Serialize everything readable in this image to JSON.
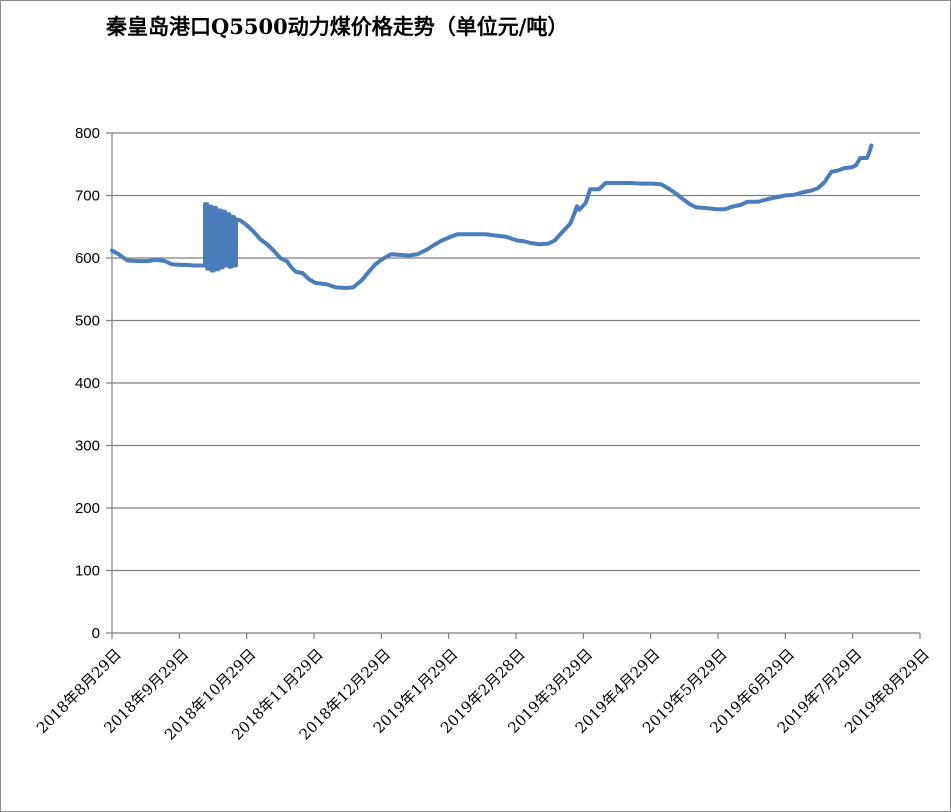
{
  "chart_data": {
    "type": "line",
    "title": "秦皇岛港口Q5500动力煤价格走势（单位元/吨）",
    "xlabel": "",
    "ylabel": "",
    "ylim": [
      0,
      800
    ],
    "yticks": [
      "0",
      "100",
      "200",
      "300",
      "400",
      "500",
      "600",
      "700",
      "800"
    ],
    "xlim": [
      "2018-08-29",
      "2019-08-29"
    ],
    "x_tick_labels": [
      "2018年8月29日",
      "2018年9月29日",
      "2018年10月29日",
      "2018年11月29日",
      "2018年12月29日",
      "2019年1月29日",
      "2019年2月28日",
      "2019年3月29日",
      "2019年4月29日",
      "2019年5月29日",
      "2019年6月29日",
      "2019年7月29日",
      "2019年8月29日"
    ],
    "grid": true,
    "legend": "none",
    "colors": {
      "series": "#4a7ebb",
      "grid": "#808080",
      "axis": "#808080"
    },
    "series": [
      {
        "points": [
          [
            "2018-08-29",
            612
          ],
          [
            "2018-09-01",
            606
          ],
          [
            "2018-09-05",
            596
          ],
          [
            "2018-09-10",
            595
          ],
          [
            "2018-09-14",
            595
          ],
          [
            "2018-09-18",
            597
          ],
          [
            "2018-09-22",
            595
          ],
          [
            "2018-09-25",
            590
          ],
          [
            "2018-09-29",
            589
          ],
          [
            "2018-10-01",
            589
          ],
          [
            "2018-10-05",
            588
          ],
          [
            "2018-10-10",
            588
          ],
          [
            "2018-10-10",
            686
          ],
          [
            "2018-10-11",
            686
          ],
          [
            "2018-10-11",
            583
          ],
          [
            "2018-10-12",
            583
          ],
          [
            "2018-10-12",
            682
          ],
          [
            "2018-10-13",
            682
          ],
          [
            "2018-10-13",
            580
          ],
          [
            "2018-10-14",
            580
          ],
          [
            "2018-10-14",
            680
          ],
          [
            "2018-10-15",
            680
          ],
          [
            "2018-10-15",
            582
          ],
          [
            "2018-10-16",
            582
          ],
          [
            "2018-10-16",
            676
          ],
          [
            "2018-10-17",
            676
          ],
          [
            "2018-10-17",
            585
          ],
          [
            "2018-10-18",
            585
          ],
          [
            "2018-10-18",
            674
          ],
          [
            "2018-10-19",
            674
          ],
          [
            "2018-10-19",
            588
          ],
          [
            "2018-10-20",
            588
          ],
          [
            "2018-10-20",
            670
          ],
          [
            "2018-10-21",
            670
          ],
          [
            "2018-10-21",
            586
          ],
          [
            "2018-10-22",
            586
          ],
          [
            "2018-10-22",
            666
          ],
          [
            "2018-10-23",
            666
          ],
          [
            "2018-10-23",
            588
          ],
          [
            "2018-10-24",
            588
          ],
          [
            "2018-10-24",
            662
          ],
          [
            "2018-10-26",
            660
          ],
          [
            "2018-10-29",
            652
          ],
          [
            "2018-11-01",
            642
          ],
          [
            "2018-11-04",
            630
          ],
          [
            "2018-11-07",
            622
          ],
          [
            "2018-11-10",
            612
          ],
          [
            "2018-11-13",
            600
          ],
          [
            "2018-11-16",
            595
          ],
          [
            "2018-11-18",
            585
          ],
          [
            "2018-11-20",
            578
          ],
          [
            "2018-11-23",
            576
          ],
          [
            "2018-11-26",
            566
          ],
          [
            "2018-11-29",
            560
          ],
          [
            "2018-12-04",
            558
          ],
          [
            "2018-12-08",
            553
          ],
          [
            "2018-12-13",
            552
          ],
          [
            "2018-12-16",
            553
          ],
          [
            "2018-12-20",
            565
          ],
          [
            "2018-12-23",
            578
          ],
          [
            "2018-12-26",
            590
          ],
          [
            "2018-12-29",
            598
          ],
          [
            "2019-01-02",
            606
          ],
          [
            "2019-01-06",
            605
          ],
          [
            "2019-01-10",
            604
          ],
          [
            "2019-01-14",
            606
          ],
          [
            "2019-01-18",
            613
          ],
          [
            "2019-01-22",
            622
          ],
          [
            "2019-01-25",
            628
          ],
          [
            "2019-01-29",
            634
          ],
          [
            "2019-02-01",
            638
          ],
          [
            "2019-02-05",
            638
          ],
          [
            "2019-02-10",
            638
          ],
          [
            "2019-02-14",
            638
          ],
          [
            "2019-02-18",
            636
          ],
          [
            "2019-02-23",
            634
          ],
          [
            "2019-02-28",
            628
          ],
          [
            "2019-03-03",
            627
          ],
          [
            "2019-03-06",
            624
          ],
          [
            "2019-03-10",
            622
          ],
          [
            "2019-03-14",
            623
          ],
          [
            "2019-03-17",
            628
          ],
          [
            "2019-03-20",
            640
          ],
          [
            "2019-03-24",
            655
          ],
          [
            "2019-03-26",
            672
          ],
          [
            "2019-03-27",
            683
          ],
          [
            "2019-03-28",
            677
          ],
          [
            "2019-03-31",
            688
          ],
          [
            "2019-04-02",
            710
          ],
          [
            "2019-04-06",
            710
          ],
          [
            "2019-04-09",
            720
          ],
          [
            "2019-04-14",
            720
          ],
          [
            "2019-04-20",
            720
          ],
          [
            "2019-04-25",
            719
          ],
          [
            "2019-04-30",
            719
          ],
          [
            "2019-05-04",
            718
          ],
          [
            "2019-05-07",
            712
          ],
          [
            "2019-05-10",
            705
          ],
          [
            "2019-05-14",
            694
          ],
          [
            "2019-05-17",
            686
          ],
          [
            "2019-05-20",
            681
          ],
          [
            "2019-05-24",
            680
          ],
          [
            "2019-05-29",
            678
          ],
          [
            "2019-06-02",
            678
          ],
          [
            "2019-06-05",
            682
          ],
          [
            "2019-06-09",
            685
          ],
          [
            "2019-06-12",
            690
          ],
          [
            "2019-06-17",
            690
          ],
          [
            "2019-06-21",
            694
          ],
          [
            "2019-06-25",
            697
          ],
          [
            "2019-06-29",
            700
          ],
          [
            "2019-07-03",
            701
          ],
          [
            "2019-07-07",
            705
          ],
          [
            "2019-07-11",
            708
          ],
          [
            "2019-07-14",
            712
          ],
          [
            "2019-07-17",
            722
          ],
          [
            "2019-07-20",
            738
          ],
          [
            "2019-07-23",
            740
          ],
          [
            "2019-07-26",
            744
          ],
          [
            "2019-07-29",
            745
          ],
          [
            "2019-07-31",
            748
          ],
          [
            "2019-08-02",
            760
          ],
          [
            "2019-08-05",
            760
          ],
          [
            "2019-08-06",
            768
          ],
          [
            "2019-08-07",
            780
          ]
        ]
      }
    ]
  }
}
